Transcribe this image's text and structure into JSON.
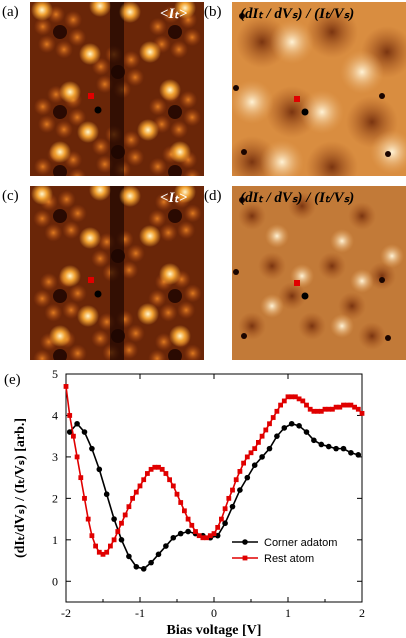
{
  "panels": [
    {
      "label": "(a)",
      "title": "<Iₜ>",
      "kind": "topo"
    },
    {
      "label": "(b)",
      "title": "(dIₜ / dVₛ) / (Iₜ/Vₛ)",
      "kind": "didv"
    },
    {
      "label": "(c)",
      "title": "<Iₜ>",
      "kind": "topo"
    },
    {
      "label": "(d)",
      "title": "(dIₜ / dVₛ) / (Iₜ/Vₛ)",
      "kind": "didv"
    }
  ],
  "plot_label": "(e)",
  "colors": {
    "corner": "#000000",
    "rest": "#e00000",
    "topo_dark": "#140400",
    "topo_bright": "#fff5cc",
    "didv_base": "#c8782a"
  },
  "chart_data": {
    "type": "line",
    "xlabel": "Bias voltage [V]",
    "ylabel": "(dIₜ/dVₛ) / (Iₜ/Vₛ) [arb.]",
    "xlim": [
      -2,
      2
    ],
    "ylim": [
      -0.5,
      5
    ],
    "xticks": [
      "-2",
      "-1",
      "0",
      "1",
      "2"
    ],
    "yticks": [
      "0",
      "1",
      "2",
      "3",
      "4",
      "5"
    ],
    "legend_position": "lower-right",
    "series": [
      {
        "name": "Corner adatom",
        "color": "#000000",
        "marker": "circle",
        "x": [
          -1.95,
          -1.85,
          -1.75,
          -1.65,
          -1.55,
          -1.45,
          -1.35,
          -1.25,
          -1.15,
          -1.05,
          -0.95,
          -0.85,
          -0.75,
          -0.65,
          -0.55,
          -0.45,
          -0.35,
          -0.25,
          -0.15,
          -0.05,
          0.05,
          0.15,
          0.25,
          0.35,
          0.45,
          0.55,
          0.65,
          0.75,
          0.85,
          0.95,
          1.05,
          1.15,
          1.25,
          1.35,
          1.45,
          1.55,
          1.65,
          1.75,
          1.85,
          1.95
        ],
        "y": [
          3.6,
          3.8,
          3.6,
          3.2,
          2.7,
          2.1,
          1.5,
          1.0,
          0.6,
          0.35,
          0.3,
          0.45,
          0.65,
          0.85,
          1.05,
          1.15,
          1.2,
          1.15,
          1.1,
          1.05,
          1.1,
          1.4,
          1.8,
          2.2,
          2.5,
          2.8,
          3.0,
          3.2,
          3.5,
          3.7,
          3.8,
          3.75,
          3.6,
          3.4,
          3.3,
          3.25,
          3.2,
          3.2,
          3.1,
          3.05
        ]
      },
      {
        "name": "Rest atom",
        "color": "#e00000",
        "marker": "square",
        "x": [
          -2.0,
          -1.95,
          -1.9,
          -1.85,
          -1.8,
          -1.75,
          -1.7,
          -1.65,
          -1.6,
          -1.55,
          -1.5,
          -1.45,
          -1.4,
          -1.35,
          -1.3,
          -1.25,
          -1.2,
          -1.15,
          -1.1,
          -1.05,
          -1.0,
          -0.95,
          -0.9,
          -0.85,
          -0.8,
          -0.75,
          -0.7,
          -0.65,
          -0.6,
          -0.55,
          -0.5,
          -0.45,
          -0.4,
          -0.35,
          -0.3,
          -0.25,
          -0.2,
          -0.15,
          -0.1,
          -0.05,
          0.0,
          0.05,
          0.1,
          0.15,
          0.2,
          0.25,
          0.3,
          0.35,
          0.4,
          0.45,
          0.5,
          0.55,
          0.6,
          0.65,
          0.7,
          0.75,
          0.8,
          0.85,
          0.9,
          0.95,
          1.0,
          1.05,
          1.1,
          1.15,
          1.2,
          1.25,
          1.3,
          1.35,
          1.4,
          1.45,
          1.5,
          1.55,
          1.6,
          1.65,
          1.7,
          1.75,
          1.8,
          1.85,
          1.9,
          1.95,
          2.0
        ],
        "y": [
          4.7,
          4.0,
          3.5,
          3.0,
          2.5,
          2.0,
          1.5,
          1.1,
          0.85,
          0.7,
          0.65,
          0.7,
          0.85,
          1.0,
          1.2,
          1.4,
          1.6,
          1.8,
          2.0,
          2.15,
          2.3,
          2.45,
          2.6,
          2.7,
          2.75,
          2.75,
          2.7,
          2.6,
          2.45,
          2.3,
          2.1,
          1.9,
          1.7,
          1.5,
          1.35,
          1.2,
          1.1,
          1.05,
          1.05,
          1.1,
          1.15,
          1.3,
          1.5,
          1.75,
          2.0,
          2.2,
          2.45,
          2.65,
          2.85,
          3.0,
          3.1,
          3.2,
          3.35,
          3.5,
          3.65,
          3.8,
          3.95,
          4.1,
          4.25,
          4.35,
          4.45,
          4.45,
          4.45,
          4.4,
          4.35,
          4.25,
          4.15,
          4.1,
          4.1,
          4.1,
          4.15,
          4.15,
          4.15,
          4.2,
          4.2,
          4.25,
          4.25,
          4.25,
          4.2,
          4.15,
          4.05
        ]
      }
    ]
  }
}
